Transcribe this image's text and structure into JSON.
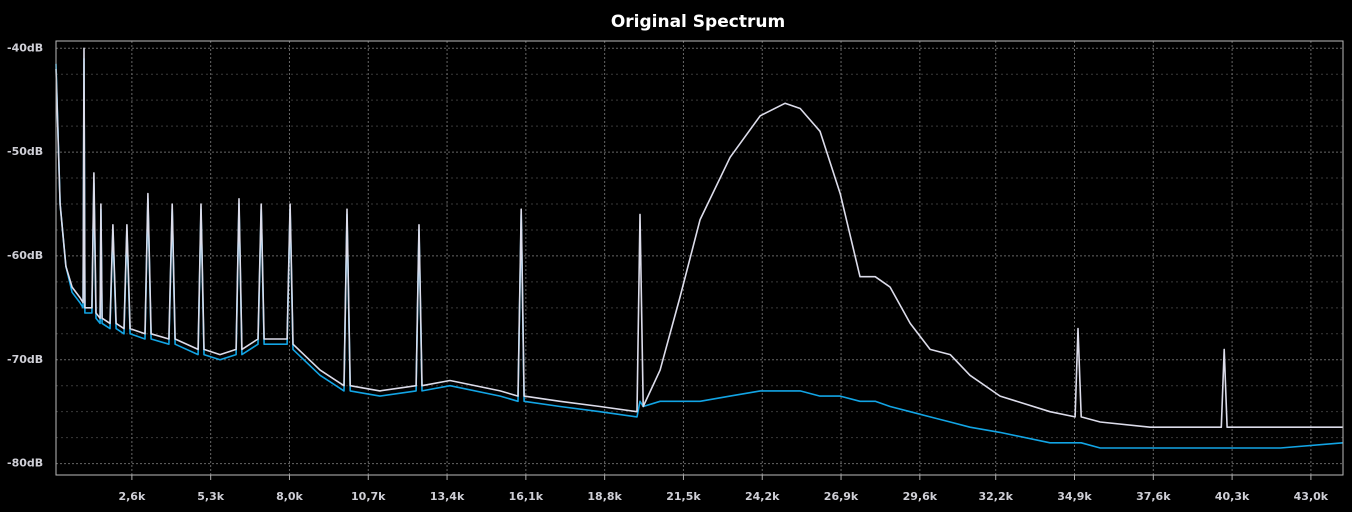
{
  "chart_data": {
    "type": "line",
    "title": "Original Spectrum",
    "x": [
      0,
      140,
      340,
      550,
      820,
      930,
      960,
      990,
      1230,
      1300,
      1370,
      1510,
      1540,
      1580,
      1850,
      1950,
      2060,
      2330,
      2430,
      2540,
      3050,
      3150,
      3260,
      3870,
      3980,
      4080,
      4870,
      4970,
      5070,
      5620,
      6170,
      6270,
      6370,
      6920,
      7030,
      7130,
      7920,
      8020,
      8120,
      9050,
      9870,
      9970,
      10080,
      11100,
      12340,
      12440,
      12540,
      13500,
      15220,
      15830,
      15940,
      16040,
      17270,
      18640,
      19910,
      20010,
      20120,
      20700,
      21380,
      22070,
      23100,
      24130,
      24980,
      25500,
      26180,
      26870,
      27550,
      28070,
      28580,
      29270,
      29950,
      30640,
      31320,
      32350,
      34060,
      34920,
      35020,
      35130,
      35780,
      37490,
      39930,
      40030,
      40130,
      41950,
      44100
    ],
    "series": [
      {
        "color": "#12a4e4",
        "values": [
          -41.5,
          -55,
          -61,
          -63.5,
          -64.5,
          -65,
          -41,
          -65.5,
          -65.5,
          -53,
          -66,
          -66.5,
          -55.5,
          -66.5,
          -67,
          -57.5,
          -67,
          -67.5,
          -57.5,
          -67.5,
          -68,
          -54.5,
          -68,
          -68.5,
          -55.5,
          -68.5,
          -69.5,
          -55.5,
          -69.5,
          -70,
          -69.5,
          -55,
          -69.5,
          -68.5,
          -55.5,
          -68.5,
          -68.5,
          -55.5,
          -69,
          -71.5,
          -73,
          -56,
          -73,
          -73.5,
          -73,
          -57.5,
          -73,
          -72.5,
          -73.5,
          -74,
          -56,
          -74,
          -74.5,
          -75,
          -75.5,
          -74,
          -74.5,
          -74,
          -74,
          -74,
          -73.5,
          -73,
          -73,
          -73,
          -73.5,
          -73.5,
          -74,
          -74,
          -74.5,
          -75,
          -75.5,
          -76,
          -76.5,
          -77,
          -78,
          -78,
          -78,
          -78,
          -78.5,
          -78.5,
          -78.5,
          -78.5,
          -78.5,
          -78.5,
          -78
        ]
      },
      {
        "color": "#dcdcea",
        "values": [
          -42,
          -55,
          -61,
          -63,
          -64,
          -64.5,
          -40,
          -65,
          -65,
          -52,
          -65.5,
          -66,
          -55,
          -66,
          -66.5,
          -57,
          -66.5,
          -67,
          -57,
          -67,
          -67.5,
          -54,
          -67.5,
          -68,
          -55,
          -68,
          -69,
          -55,
          -69,
          -69.5,
          -69,
          -54.5,
          -69,
          -68,
          -55,
          -68,
          -68,
          -55,
          -68.5,
          -71,
          -72.5,
          -55.5,
          -72.5,
          -73,
          -72.5,
          -57,
          -72.5,
          -72,
          -73,
          -73.5,
          -55.5,
          -73.5,
          -74,
          -74.5,
          -75,
          -56,
          -74.5,
          -71,
          -64,
          -56.5,
          -50.5,
          -46.5,
          -45.3,
          -45.8,
          -48,
          -54,
          -62,
          -62,
          -63,
          -66.5,
          -69,
          -69.5,
          -71.5,
          -73.5,
          -75,
          -75.5,
          -67,
          -75.5,
          -76,
          -76.5,
          -76.5,
          -69,
          -76.5,
          -76.5,
          -76.5
        ]
      }
    ],
    "xlim": [
      0,
      44100
    ],
    "ylim": [
      -81.1,
      -39.3
    ],
    "xticks": [
      {
        "value": 2600,
        "label": "2,6k"
      },
      {
        "value": 5300,
        "label": "5,3k"
      },
      {
        "value": 8000,
        "label": "8,0k"
      },
      {
        "value": 10700,
        "label": "10,7k"
      },
      {
        "value": 13400,
        "label": "13,4k"
      },
      {
        "value": 16100,
        "label": "16,1k"
      },
      {
        "value": 18800,
        "label": "18,8k"
      },
      {
        "value": 21500,
        "label": "21,5k"
      },
      {
        "value": 24200,
        "label": "24,2k"
      },
      {
        "value": 26900,
        "label": "26,9k"
      },
      {
        "value": 29600,
        "label": "29,6k"
      },
      {
        "value": 32200,
        "label": "32,2k"
      },
      {
        "value": 34900,
        "label": "34,9k"
      },
      {
        "value": 37600,
        "label": "37,6k"
      },
      {
        "value": 40300,
        "label": "40,3k"
      },
      {
        "value": 43000,
        "label": "43,0k"
      }
    ],
    "yticks": [
      {
        "value": -40,
        "label": "-40dB"
      },
      {
        "value": -50,
        "label": "-50dB"
      },
      {
        "value": -60,
        "label": "-60dB"
      },
      {
        "value": -70,
        "label": "-70dB"
      },
      {
        "value": -80,
        "label": "-80dB"
      }
    ],
    "y_minor_ticks": [
      -42.5,
      -45,
      -47.5,
      -52.5,
      -55,
      -57.5,
      -62.5,
      -65,
      -67.5,
      -72.5,
      -75,
      -77.5
    ],
    "grid": true
  }
}
